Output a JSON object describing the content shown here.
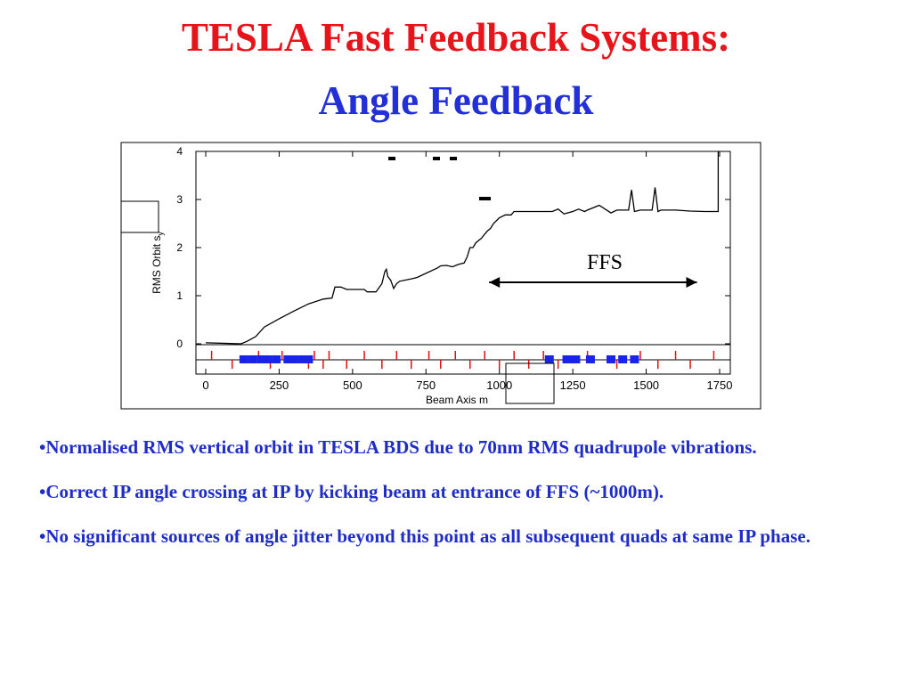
{
  "slide": {
    "title_line1": "TESLA Fast Feedback Systems:",
    "title_line2": "Angle Feedback",
    "bullets": [
      "Normalised RMS vertical orbit in TESLA BDS due to 70nm RMS quadrupole vibrations.",
      "Correct IP angle crossing at IP by kicking beam at entrance of FFS (~1000m).",
      "No significant sources of angle jitter beyond this point as all subsequent quads at same IP phase."
    ],
    "bullet_marker": "•"
  },
  "chart_data": {
    "type": "line",
    "xlabel": "Beam Axis   m",
    "ylabel": "RMS Orbit  s",
    "ylabel_sub": "y",
    "xlim": [
      0,
      1750
    ],
    "ylim": [
      0,
      4
    ],
    "x_ticks": [
      0,
      250,
      500,
      750,
      1000,
      1250,
      1500,
      1750
    ],
    "y_ticks": [
      0,
      1,
      2,
      3,
      4
    ],
    "annotation": "FFS",
    "ffs_range": [
      1050,
      1700
    ],
    "series": [
      {
        "x": [
          0,
          120,
          140,
          170,
          200,
          250,
          300,
          350,
          400,
          430,
          440,
          460,
          480,
          540,
          550,
          580,
          600,
          610,
          615,
          620,
          630,
          640,
          650,
          660,
          700,
          720,
          790,
          800,
          820,
          840,
          860,
          880,
          890,
          900,
          910,
          920,
          930,
          940,
          950,
          960,
          970,
          980,
          1000,
          1020,
          1040,
          1050,
          1100,
          1120,
          1140,
          1160,
          1180,
          1200,
          1220,
          1250,
          1270,
          1290,
          1300,
          1340,
          1380,
          1400,
          1420,
          1440,
          1450,
          1460,
          1480,
          1500,
          1520,
          1530,
          1540,
          1550,
          1600,
          1650,
          1700,
          1720,
          1740,
          1745,
          1745
        ],
        "values": [
          0.02,
          0.0,
          0.05,
          0.15,
          0.35,
          0.52,
          0.68,
          0.83,
          0.93,
          0.95,
          1.18,
          1.18,
          1.13,
          1.13,
          1.08,
          1.08,
          1.25,
          1.5,
          1.55,
          1.4,
          1.32,
          1.15,
          1.25,
          1.3,
          1.35,
          1.38,
          1.58,
          1.62,
          1.63,
          1.6,
          1.65,
          1.68,
          1.8,
          2.0,
          2.0,
          2.1,
          2.15,
          2.2,
          2.28,
          2.35,
          2.4,
          2.5,
          2.62,
          2.68,
          2.68,
          2.75,
          2.75,
          2.75,
          2.75,
          2.75,
          2.75,
          2.8,
          2.7,
          2.75,
          2.8,
          2.75,
          2.78,
          2.88,
          2.72,
          2.78,
          2.78,
          2.78,
          3.2,
          2.75,
          2.78,
          2.78,
          2.78,
          3.25,
          2.75,
          2.78,
          2.78,
          2.76,
          2.75,
          2.75,
          2.75,
          2.75,
          4.0
        ]
      }
    ],
    "beamline_blue_elements_x": [
      130,
      160,
      190,
      210,
      240,
      280,
      300,
      330,
      350,
      1170,
      1230,
      1260,
      1310,
      1380,
      1420,
      1460
    ],
    "beamline_red_elements_x": [
      20,
      90,
      180,
      220,
      260,
      350,
      370,
      400,
      420,
      480,
      540,
      600,
      650,
      700,
      760,
      800,
      850,
      900,
      950,
      1000,
      1050,
      1100,
      1150,
      1200,
      1300,
      1400,
      1480,
      1540,
      1600,
      1650,
      1730
    ]
  }
}
